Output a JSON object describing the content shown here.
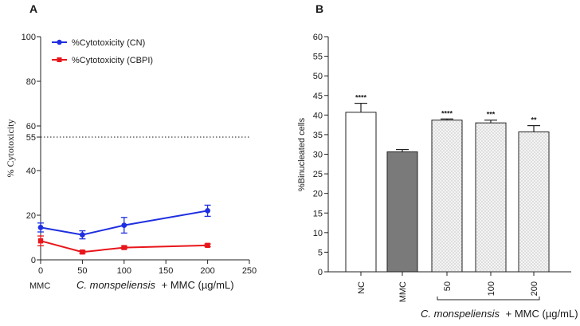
{
  "chart_data": [
    {
      "panel": "A",
      "type": "line",
      "x": [
        0,
        50,
        100,
        200
      ],
      "xlim": [
        0,
        250
      ],
      "xticks": [
        0,
        50,
        100,
        150,
        200,
        250
      ],
      "ylim": [
        0,
        100
      ],
      "yticks": [
        0,
        20,
        40,
        55,
        60,
        80,
        100
      ],
      "ylabel": "% Cytotoxicity",
      "xlabel_prefix": "MMC",
      "xlabel_species": "C. monspeliensis",
      "xlabel_suffix": "+ MMC (µg/mL)",
      "reference_line": {
        "y": 55,
        "style": "dotted"
      },
      "series": [
        {
          "name": "%Cytotoxicity (CN)",
          "color": "#1f2fe0",
          "marker": "circle",
          "values": [
            14.5,
            11.2,
            15.5,
            22.0
          ],
          "errors": [
            2.0,
            1.8,
            3.5,
            2.5
          ]
        },
        {
          "name": "%Cytotoxicity (CBPI)",
          "color": "#e8161b",
          "marker": "square",
          "values": [
            8.5,
            3.5,
            5.5,
            6.5
          ],
          "errors": [
            2.2,
            0.6,
            0.6,
            0.6
          ]
        }
      ]
    },
    {
      "panel": "B",
      "type": "bar",
      "categories": [
        "NC",
        "MMC",
        "50",
        "100",
        "200"
      ],
      "values": [
        40.7,
        30.6,
        38.7,
        38.0,
        35.7
      ],
      "errors": [
        2.3,
        0.6,
        0.3,
        0.7,
        1.6
      ],
      "significance": [
        "****",
        "",
        "****",
        "***",
        "**"
      ],
      "fills": [
        "white",
        "gray",
        "dotted",
        "dotted",
        "dotted"
      ],
      "ylim": [
        0,
        60
      ],
      "yticks": [
        0,
        5,
        10,
        15,
        20,
        25,
        30,
        35,
        40,
        45,
        50,
        55,
        60
      ],
      "ylabel": "%Binucleated cells",
      "xlabel_species": "C. monspeliensis",
      "xlabel_suffix": "+ MMC (µg/mL)",
      "colors": {
        "gray": "#7a7a7a",
        "edge": "#222222"
      }
    }
  ]
}
